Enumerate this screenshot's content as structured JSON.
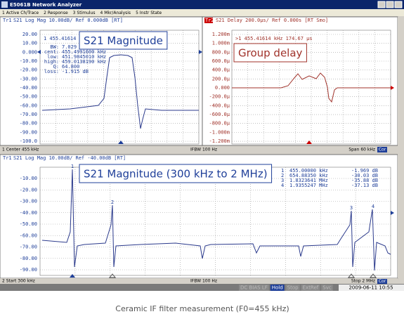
{
  "window": {
    "title": "E5061B Network Analyzer"
  },
  "menu": [
    "1 Active Ch/Trace",
    "2 Response",
    "3 Stimulus",
    "4 Mkr/Analysis",
    "5 Instr State"
  ],
  "panels": [
    {
      "trace": "Tr1",
      "header": "S21 Log Mag 10.00dB/ Ref 0.000dB [RT]",
      "y_labels": [
        "20.00",
        "10.00",
        "0.000",
        "-10.00",
        "-20.00",
        "-30.00",
        "-40.00",
        "-50.00",
        "-60.00",
        "-70.00",
        "-80.00",
        "-90.00",
        "-100.0"
      ],
      "marker": "1  455.41614",
      "readout": [
        [
          "BW:",
          "7.029"
        ],
        [
          "cent:",
          "455.4991600 kHz"
        ],
        [
          "low:",
          "451.9845010 kHz"
        ],
        [
          "high:",
          "459.0138190 kHz"
        ],
        [
          "Q:",
          "64.800"
        ],
        [
          "loss:",
          "-1.915 dB"
        ]
      ],
      "label": "S21 Magnitude"
    },
    {
      "trace": "Tr2",
      "header": "S21 Delay 200.0μs/ Ref 0.000s [RT Smo]",
      "y_labels": [
        "1.200m",
        "1.000m",
        "800.0μ",
        "600.0μ",
        "400.0μ",
        "200.0μ",
        "0.000",
        "-200.0μ",
        "-400.0μ",
        "-600.0μ",
        "-800.0μ",
        "-1.000m",
        "-1.200m"
      ],
      "marker": ">1  455.41614 kHz  174.67 μs",
      "label": "Group delay"
    },
    {
      "trace": "Tr1",
      "header": "S21 Log Mag 10.00dB/ Ref -40.00dB [RT]",
      "y_labels": [
        "-10.00",
        "-20.00",
        "-30.00",
        "-40.00",
        "-50.00",
        "-60.00",
        "-70.00",
        "-80.00",
        "-90.00"
      ],
      "readout": [
        [
          "1",
          "455.00000 kHz",
          "-1.969 dB"
        ],
        [
          "2",
          "654.88350 kHz",
          "-30.03 dB"
        ],
        [
          "3",
          "1.8323641 MHz",
          "-35.88 dB"
        ],
        [
          "4",
          "1.9355247 MHz",
          "-37.13 dB"
        ]
      ],
      "label": "S21 Magnitude (300 kHz to 2 MHz)"
    }
  ],
  "status_1": {
    "left": "1  Center 455 kHz",
    "middle": "IFBW 100 Hz",
    "right": "Span 60 kHz",
    "cor": "Cor"
  },
  "status_2": {
    "left": "2  Start 300 kHz",
    "middle": "IFBW 100 Hz",
    "right": "Stop 2 MHz",
    "cor": "Cor"
  },
  "bottom_bar": {
    "indicators": [
      "DC BIAS LF",
      "Hold",
      "Stop",
      "ExtRef",
      "Svc"
    ],
    "datetime": "2009-06-11 10:55"
  },
  "caption": "Ceramic IF filter measurement (F0=455 kHz)"
}
